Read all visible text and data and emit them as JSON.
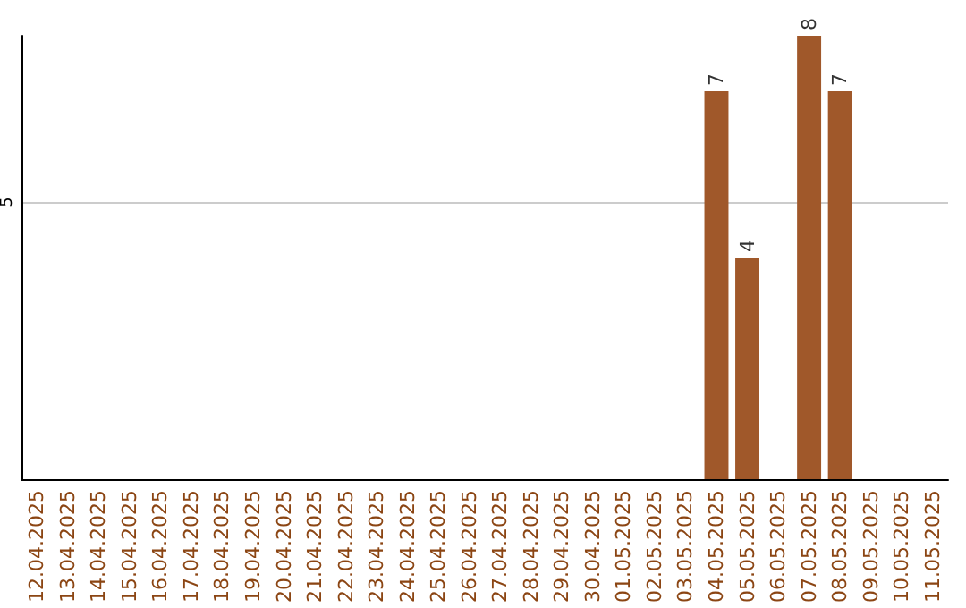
{
  "chart_data": {
    "type": "bar",
    "categories": [
      "12.04.2025",
      "13.04.2025",
      "14.04.2025",
      "15.04.2025",
      "16.04.2025",
      "17.04.2025",
      "18.04.2025",
      "19.04.2025",
      "20.04.2025",
      "21.04.2025",
      "22.04.2025",
      "23.04.2025",
      "24.04.2025",
      "25.04.2025",
      "26.04.2025",
      "27.04.2025",
      "28.04.2025",
      "29.04.2025",
      "30.04.2025",
      "01.05.2025",
      "02.05.2025",
      "03.05.2025",
      "04.05.2025",
      "05.05.2025",
      "06.05.2025",
      "07.05.2025",
      "08.05.2025",
      "09.05.2025",
      "10.05.2025",
      "11.05.2025"
    ],
    "values": [
      null,
      null,
      null,
      null,
      null,
      null,
      null,
      null,
      null,
      null,
      null,
      null,
      null,
      null,
      null,
      null,
      null,
      null,
      null,
      null,
      null,
      null,
      7,
      4,
      null,
      8,
      7,
      null,
      null,
      null
    ],
    "color": "#a0582a",
    "ylim": [
      0,
      8
    ],
    "yticks": [
      5
    ],
    "grid": "y",
    "data_labels": true
  }
}
